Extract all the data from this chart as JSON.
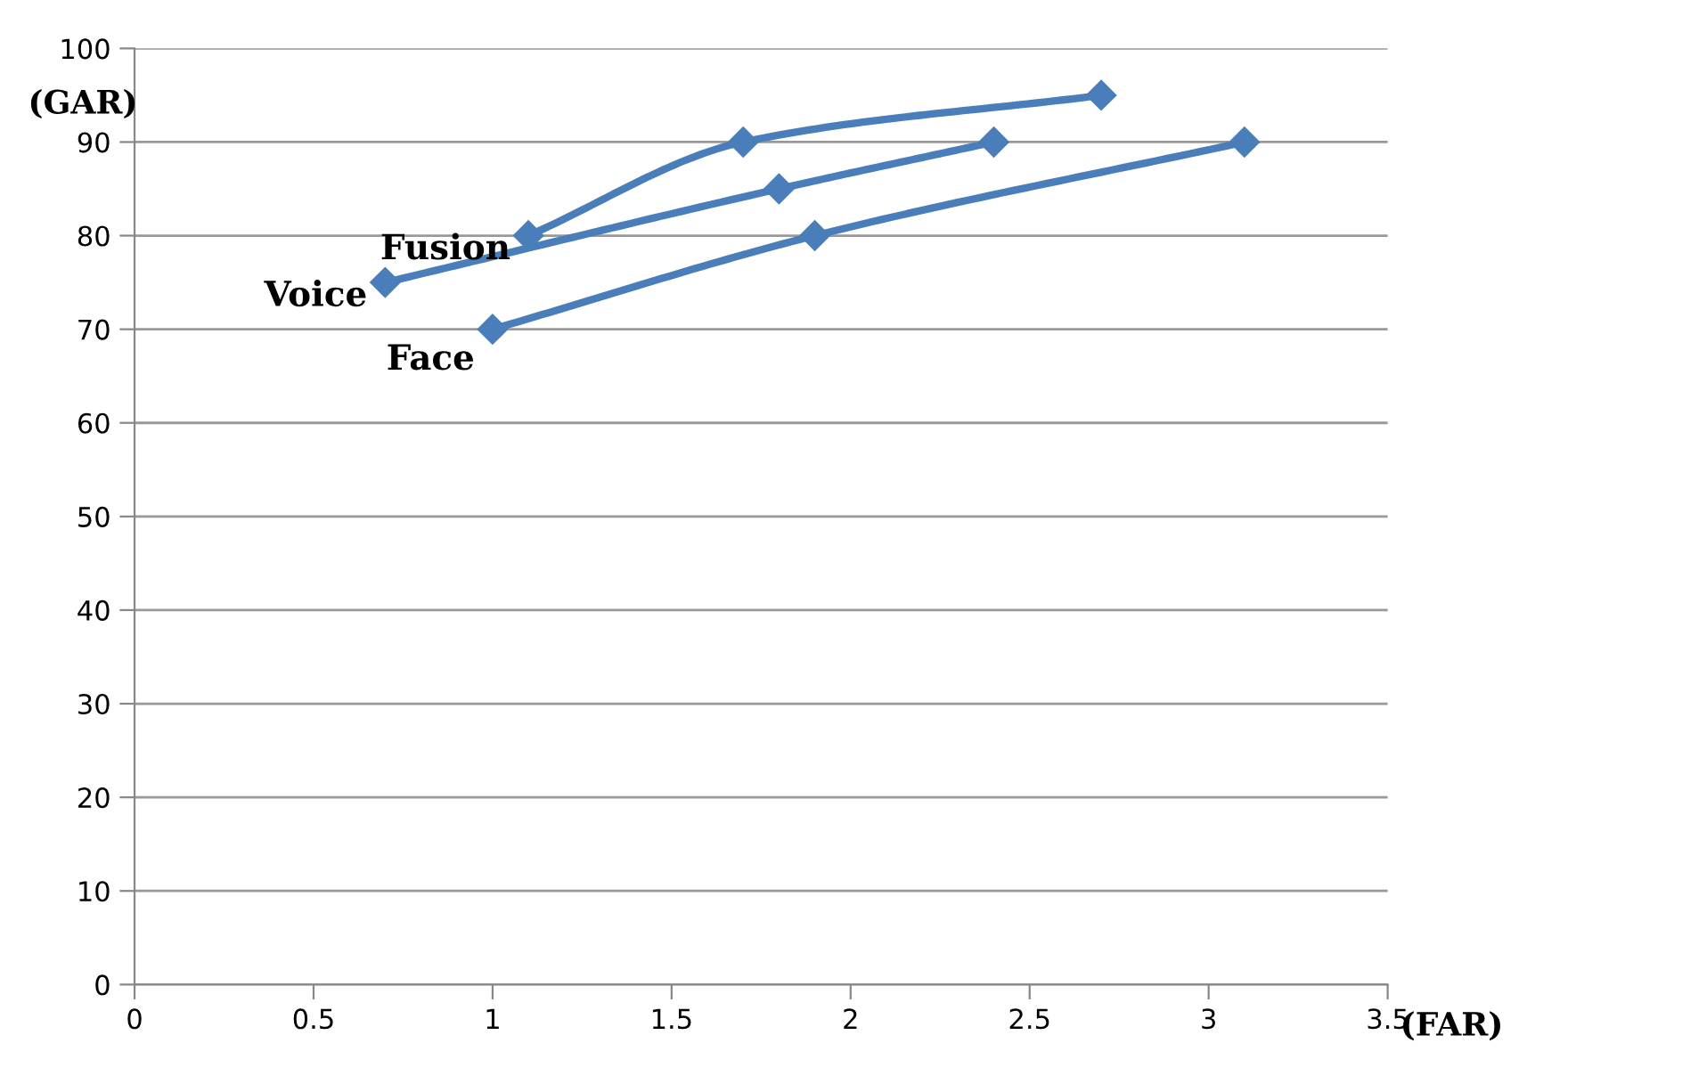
{
  "chart_data": {
    "type": "line",
    "xlabel": "(FAR)",
    "ylabel": "(GAR)",
    "series": [
      {
        "name": "Fusion",
        "color": "#4a7ebb",
        "x": [
          1.1,
          1.7,
          2.7
        ],
        "values": [
          80,
          90,
          95
        ]
      },
      {
        "name": "Voice",
        "color": "#4a7ebb",
        "x": [
          0.7,
          1.8,
          2.4
        ],
        "values": [
          75,
          85,
          90
        ]
      },
      {
        "name": "Face",
        "color": "#4a7ebb",
        "x": [
          1.0,
          1.9,
          3.1
        ],
        "values": [
          70,
          80,
          90
        ]
      }
    ],
    "xlim": [
      0,
      3.5
    ],
    "xticks": [
      0,
      0.5,
      1,
      1.5,
      2,
      2.5,
      3,
      3.5
    ],
    "ylim": [
      0,
      100
    ],
    "yticks": [
      0,
      10,
      20,
      30,
      40,
      50,
      60,
      70,
      80,
      90,
      100
    ],
    "grid": "y",
    "marker": "diamond",
    "line_style": "solid",
    "legend": false
  }
}
